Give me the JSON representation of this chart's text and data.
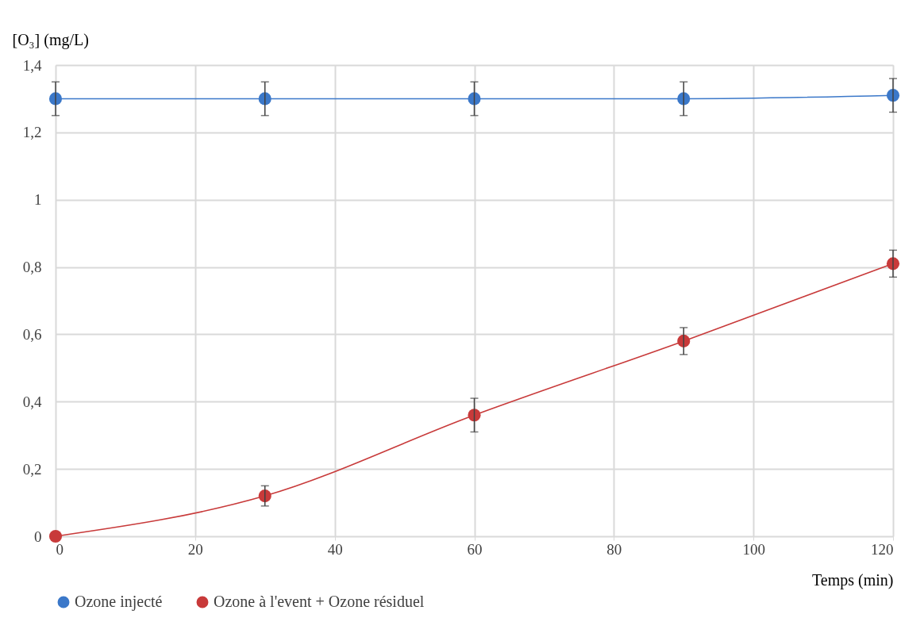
{
  "chart_data": {
    "type": "line",
    "xlabel": "Temps (min)",
    "ylabel": "[O₃]  (mg/L)",
    "x": [
      0,
      30,
      60,
      90,
      120
    ],
    "series": [
      {
        "name": "Ozone injecté",
        "color": "#3b78c9",
        "values": [
          1.3,
          1.3,
          1.3,
          1.3,
          1.31
        ],
        "errors": [
          0.05,
          0.05,
          0.05,
          0.05,
          0.05
        ]
      },
      {
        "name": "Ozone à l'event + Ozone résiduel",
        "color": "#c83a3a",
        "values": [
          0,
          0.12,
          0.36,
          0.58,
          0.81
        ],
        "errors": [
          null,
          0.03,
          0.05,
          0.04,
          0.04
        ]
      }
    ],
    "xlim": [
      0,
      120
    ],
    "xticks": [
      0,
      20,
      40,
      60,
      80,
      100,
      120
    ],
    "ylim": [
      0,
      1.4
    ],
    "yticks": [
      0,
      {
        "value": 0.2,
        "label": "0,2"
      },
      {
        "value": 0.4,
        "label": "0,4"
      },
      {
        "value": 0.6,
        "label": "0,6"
      },
      {
        "value": 0.8,
        "label": "0,8"
      },
      1,
      {
        "value": 1.2,
        "label": "1,2"
      },
      {
        "value": 1.4,
        "label": "1,4"
      }
    ],
    "grid": true,
    "legend": "bottom",
    "marker": "circle",
    "line_style": "solid"
  }
}
